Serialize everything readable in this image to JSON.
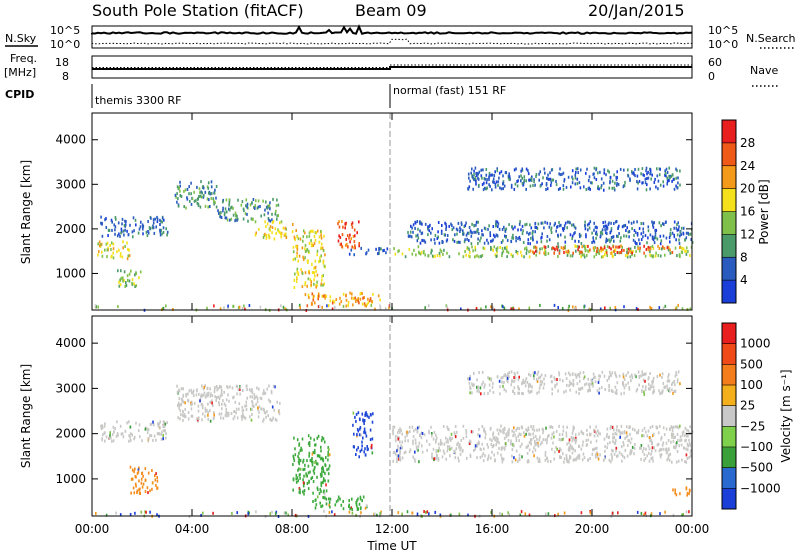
{
  "header": {
    "title": "South Pole Station (fitACF)",
    "beam": "Beam 09",
    "date": "20/Jan/2015"
  },
  "top_panels": {
    "nsky_label": "N.Sky",
    "nsearch_label": "N.Search",
    "nsky_ticks": [
      "10^5",
      "10^0"
    ],
    "nsearch_ticks": [
      "10^5",
      "10^0"
    ],
    "freq_label_top": "Freq.",
    "freq_label_bottom": "[MHz]",
    "freq_ticks": [
      "18",
      "8"
    ],
    "nave_label": "Nave",
    "nave_ticks": [
      "60",
      "0"
    ],
    "cpid_label": "CPID",
    "cpid_segments": [
      "themis 3300 RF",
      "normal (fast) 151 RF"
    ]
  },
  "chart_data": [
    {
      "type": "heatmap",
      "name": "power",
      "ylabel": "Slant Range [km]",
      "xlabel": "",
      "x_ticks": [
        "00:00",
        "04:00",
        "08:00",
        "12:00",
        "16:00",
        "20:00",
        "00:00"
      ],
      "y_ticks": [
        1000,
        2000,
        3000,
        4000
      ],
      "xlim_hours": [
        0,
        24
      ],
      "ylim_km": [
        180,
        4600
      ],
      "colorbar": {
        "label": "Power [dB]",
        "ticks": [
          4,
          8,
          12,
          16,
          20,
          24,
          28
        ],
        "colors": [
          "#1a3fd9",
          "#2a5bbf",
          "#4a9a6a",
          "#7fc04a",
          "#f4e11c",
          "#f39a1b",
          "#ef5a18",
          "#e91e1e"
        ]
      },
      "features": [
        {
          "t0": 0.0,
          "t1": 24.0,
          "r0": 200,
          "r1": 320,
          "level": 3,
          "kind": "noise"
        },
        {
          "t0": 0.2,
          "t1": 1.5,
          "r0": 1350,
          "r1": 1750,
          "level": 4
        },
        {
          "t0": 0.3,
          "t1": 3.0,
          "r0": 1850,
          "r1": 2300,
          "level": 1
        },
        {
          "t0": 1.0,
          "t1": 2.0,
          "r0": 700,
          "r1": 1100,
          "level": 3
        },
        {
          "t0": 3.3,
          "t1": 5.0,
          "r0": 2500,
          "r1": 3100,
          "level": 2
        },
        {
          "t0": 5.0,
          "t1": 7.5,
          "r0": 2200,
          "r1": 2700,
          "level": 2
        },
        {
          "t0": 6.5,
          "t1": 8.0,
          "r0": 1800,
          "r1": 2200,
          "level": 4
        },
        {
          "t0": 8.0,
          "t1": 9.3,
          "r0": 700,
          "r1": 2000,
          "level": 4
        },
        {
          "t0": 8.5,
          "t1": 11.5,
          "r0": 300,
          "r1": 600,
          "level": 5
        },
        {
          "t0": 9.8,
          "t1": 10.7,
          "r0": 1600,
          "r1": 2200,
          "level": 6
        },
        {
          "t0": 10.2,
          "t1": 11.8,
          "r0": 1450,
          "r1": 1600,
          "level": 1
        },
        {
          "t0": 12.0,
          "t1": 24.0,
          "r0": 1400,
          "r1": 1650,
          "level": 3
        },
        {
          "t0": 17.5,
          "t1": 23.5,
          "r0": 1480,
          "r1": 1650,
          "level": 6
        },
        {
          "t0": 12.6,
          "t1": 24.0,
          "r0": 1700,
          "r1": 2200,
          "level": 1
        },
        {
          "t0": 15.0,
          "t1": 23.5,
          "r0": 2900,
          "r1": 3400,
          "level": 1
        }
      ]
    },
    {
      "type": "heatmap",
      "name": "velocity",
      "ylabel": "Slant Range [km]",
      "xlabel": "Time UT",
      "x_ticks": [
        "00:00",
        "04:00",
        "08:00",
        "12:00",
        "16:00",
        "20:00",
        "00:00"
      ],
      "y_ticks": [
        1000,
        2000,
        3000,
        4000
      ],
      "xlim_hours": [
        0,
        24
      ],
      "ylim_km": [
        180,
        4600
      ],
      "colorbar": {
        "label": "Velocity [m s⁻¹]",
        "ticks": [
          "1000",
          "500",
          "100",
          "25",
          "−25",
          "−100",
          "−500",
          "−1000"
        ],
        "colors": [
          "#1a3fd9",
          "#2a6ad0",
          "#3aa03a",
          "#7fd04a",
          "#c8c8c8",
          "#f4b01c",
          "#f37d1b",
          "#ef4a18",
          "#e91e1e"
        ]
      },
      "features": [
        {
          "t0": 0.0,
          "t1": 24.0,
          "r0": 200,
          "r1": 320,
          "vel": "noise"
        },
        {
          "t0": 0.3,
          "t1": 3.0,
          "r0": 1850,
          "r1": 2300,
          "vel": "gray"
        },
        {
          "t0": 1.5,
          "t1": 2.6,
          "r0": 700,
          "r1": 1300,
          "vel": "orange"
        },
        {
          "t0": 3.3,
          "t1": 7.5,
          "r0": 2300,
          "r1": 3100,
          "vel": "gray"
        },
        {
          "t0": 8.0,
          "t1": 9.5,
          "r0": 700,
          "r1": 2000,
          "vel": "green"
        },
        {
          "t0": 8.8,
          "t1": 11.0,
          "r0": 350,
          "r1": 650,
          "vel": "green"
        },
        {
          "t0": 10.4,
          "t1": 11.2,
          "r0": 1500,
          "r1": 2500,
          "vel": "blue"
        },
        {
          "t0": 12.0,
          "t1": 24.0,
          "r0": 1400,
          "r1": 2200,
          "vel": "gray"
        },
        {
          "t0": 15.0,
          "t1": 23.5,
          "r0": 2900,
          "r1": 3400,
          "vel": "gray"
        },
        {
          "t0": 23.2,
          "t1": 24.0,
          "r0": 650,
          "r1": 850,
          "vel": "orange"
        }
      ]
    }
  ]
}
